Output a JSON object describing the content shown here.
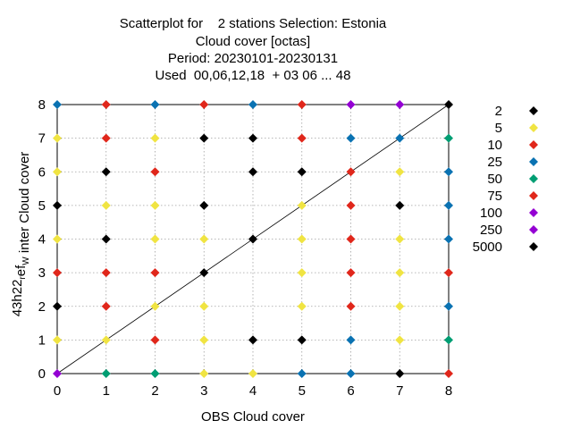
{
  "chart_data": {
    "type": "scatter",
    "title_lines": [
      "Scatterplot for    2 stations Selection: Estonia",
      "Cloud cover [octas]",
      "Period: 20230101-20230131",
      "Used  00,06,12,18  + 03 06 ... 48"
    ],
    "xlabel": "OBS Cloud cover",
    "ylabel_main": "43h22",
    "ylabel_sub1": "r",
    "ylabel_mid": "ef",
    "ylabel_sub2": "W",
    "ylabel_tail": "inter Cloud cover",
    "xlim": [
      0,
      8
    ],
    "ylim": [
      0,
      8
    ],
    "xticks": [
      "0",
      "1",
      "2",
      "3",
      "4",
      "5",
      "6",
      "7",
      "8"
    ],
    "yticks": [
      "0",
      "1",
      "2",
      "3",
      "4",
      "5",
      "6",
      "7",
      "8"
    ],
    "grid": true,
    "legend_position": "right",
    "diagonal": true,
    "legend": [
      {
        "label": "2",
        "color": "#000000"
      },
      {
        "label": "5",
        "color": "#f0e442"
      },
      {
        "label": "10",
        "color": "#e0271b"
      },
      {
        "label": "25",
        "color": "#0a72b2"
      },
      {
        "label": "50",
        "color": "#009e73"
      },
      {
        "label": "75",
        "color": "#e0271b"
      },
      {
        "label": "100",
        "color": "#9400d3"
      },
      {
        "label": "250",
        "color": "#9400d3"
      },
      {
        "label": "5000",
        "color": "#000000"
      }
    ],
    "points": [
      {
        "x": 0,
        "y": 8,
        "color": "#0a72b2"
      },
      {
        "x": 1,
        "y": 8,
        "color": "#e0271b"
      },
      {
        "x": 2,
        "y": 8,
        "color": "#0a72b2"
      },
      {
        "x": 3,
        "y": 8,
        "color": "#e0271b"
      },
      {
        "x": 4,
        "y": 8,
        "color": "#0a72b2"
      },
      {
        "x": 5,
        "y": 8,
        "color": "#e0271b"
      },
      {
        "x": 6,
        "y": 8,
        "color": "#9400d3"
      },
      {
        "x": 7,
        "y": 8,
        "color": "#9400d3"
      },
      {
        "x": 8,
        "y": 8,
        "color": "#000000"
      },
      {
        "x": 0,
        "y": 7,
        "color": "#f0e442"
      },
      {
        "x": 1,
        "y": 7,
        "color": "#e0271b"
      },
      {
        "x": 2,
        "y": 7,
        "color": "#f0e442"
      },
      {
        "x": 3,
        "y": 7,
        "color": "#000000"
      },
      {
        "x": 4,
        "y": 7,
        "color": "#000000"
      },
      {
        "x": 5,
        "y": 7,
        "color": "#e0271b"
      },
      {
        "x": 6,
        "y": 7,
        "color": "#0a72b2"
      },
      {
        "x": 7,
        "y": 7,
        "color": "#0a72b2"
      },
      {
        "x": 8,
        "y": 7,
        "color": "#009e73"
      },
      {
        "x": 0,
        "y": 6,
        "color": "#f0e442"
      },
      {
        "x": 1,
        "y": 6,
        "color": "#000000"
      },
      {
        "x": 2,
        "y": 6,
        "color": "#e0271b"
      },
      {
        "x": 4,
        "y": 6,
        "color": "#000000"
      },
      {
        "x": 5,
        "y": 6,
        "color": "#000000"
      },
      {
        "x": 6,
        "y": 6,
        "color": "#e0271b"
      },
      {
        "x": 7,
        "y": 6,
        "color": "#f0e442"
      },
      {
        "x": 8,
        "y": 6,
        "color": "#0a72b2"
      },
      {
        "x": 0,
        "y": 5,
        "color": "#000000"
      },
      {
        "x": 1,
        "y": 5,
        "color": "#f0e442"
      },
      {
        "x": 2,
        "y": 5,
        "color": "#f0e442"
      },
      {
        "x": 3,
        "y": 5,
        "color": "#000000"
      },
      {
        "x": 5,
        "y": 5,
        "color": "#f0e442"
      },
      {
        "x": 6,
        "y": 5,
        "color": "#e0271b"
      },
      {
        "x": 7,
        "y": 5,
        "color": "#000000"
      },
      {
        "x": 8,
        "y": 5,
        "color": "#0a72b2"
      },
      {
        "x": 0,
        "y": 4,
        "color": "#f0e442"
      },
      {
        "x": 1,
        "y": 4,
        "color": "#000000"
      },
      {
        "x": 2,
        "y": 4,
        "color": "#f0e442"
      },
      {
        "x": 3,
        "y": 4,
        "color": "#f0e442"
      },
      {
        "x": 4,
        "y": 4,
        "color": "#000000"
      },
      {
        "x": 5,
        "y": 4,
        "color": "#f0e442"
      },
      {
        "x": 6,
        "y": 4,
        "color": "#e0271b"
      },
      {
        "x": 7,
        "y": 4,
        "color": "#f0e442"
      },
      {
        "x": 8,
        "y": 4,
        "color": "#0a72b2"
      },
      {
        "x": 0,
        "y": 3,
        "color": "#e0271b"
      },
      {
        "x": 1,
        "y": 3,
        "color": "#e0271b"
      },
      {
        "x": 2,
        "y": 3,
        "color": "#e0271b"
      },
      {
        "x": 3,
        "y": 3,
        "color": "#000000"
      },
      {
        "x": 5,
        "y": 3,
        "color": "#f0e442"
      },
      {
        "x": 6,
        "y": 3,
        "color": "#e0271b"
      },
      {
        "x": 7,
        "y": 3,
        "color": "#f0e442"
      },
      {
        "x": 8,
        "y": 3,
        "color": "#e0271b"
      },
      {
        "x": 0,
        "y": 2,
        "color": "#000000"
      },
      {
        "x": 1,
        "y": 2,
        "color": "#e0271b"
      },
      {
        "x": 2,
        "y": 2,
        "color": "#f0e442"
      },
      {
        "x": 3,
        "y": 2,
        "color": "#f0e442"
      },
      {
        "x": 5,
        "y": 2,
        "color": "#f0e442"
      },
      {
        "x": 6,
        "y": 2,
        "color": "#e0271b"
      },
      {
        "x": 7,
        "y": 2,
        "color": "#f0e442"
      },
      {
        "x": 8,
        "y": 2,
        "color": "#0a72b2"
      },
      {
        "x": 0,
        "y": 1,
        "color": "#f0e442"
      },
      {
        "x": 1,
        "y": 1,
        "color": "#f0e442"
      },
      {
        "x": 2,
        "y": 1,
        "color": "#e0271b"
      },
      {
        "x": 3,
        "y": 1,
        "color": "#f0e442"
      },
      {
        "x": 4,
        "y": 1,
        "color": "#000000"
      },
      {
        "x": 5,
        "y": 1,
        "color": "#000000"
      },
      {
        "x": 6,
        "y": 1,
        "color": "#0a72b2"
      },
      {
        "x": 7,
        "y": 1,
        "color": "#f0e442"
      },
      {
        "x": 8,
        "y": 1,
        "color": "#009e73"
      },
      {
        "x": 0,
        "y": 0,
        "color": "#9400d3"
      },
      {
        "x": 1,
        "y": 0,
        "color": "#009e73"
      },
      {
        "x": 2,
        "y": 0,
        "color": "#009e73"
      },
      {
        "x": 3,
        "y": 0,
        "color": "#f0e442"
      },
      {
        "x": 4,
        "y": 0,
        "color": "#f0e442"
      },
      {
        "x": 5,
        "y": 0,
        "color": "#0a72b2"
      },
      {
        "x": 6,
        "y": 0,
        "color": "#0a72b2"
      },
      {
        "x": 7,
        "y": 0,
        "color": "#000000"
      },
      {
        "x": 8,
        "y": 0,
        "color": "#e0271b"
      }
    ]
  }
}
